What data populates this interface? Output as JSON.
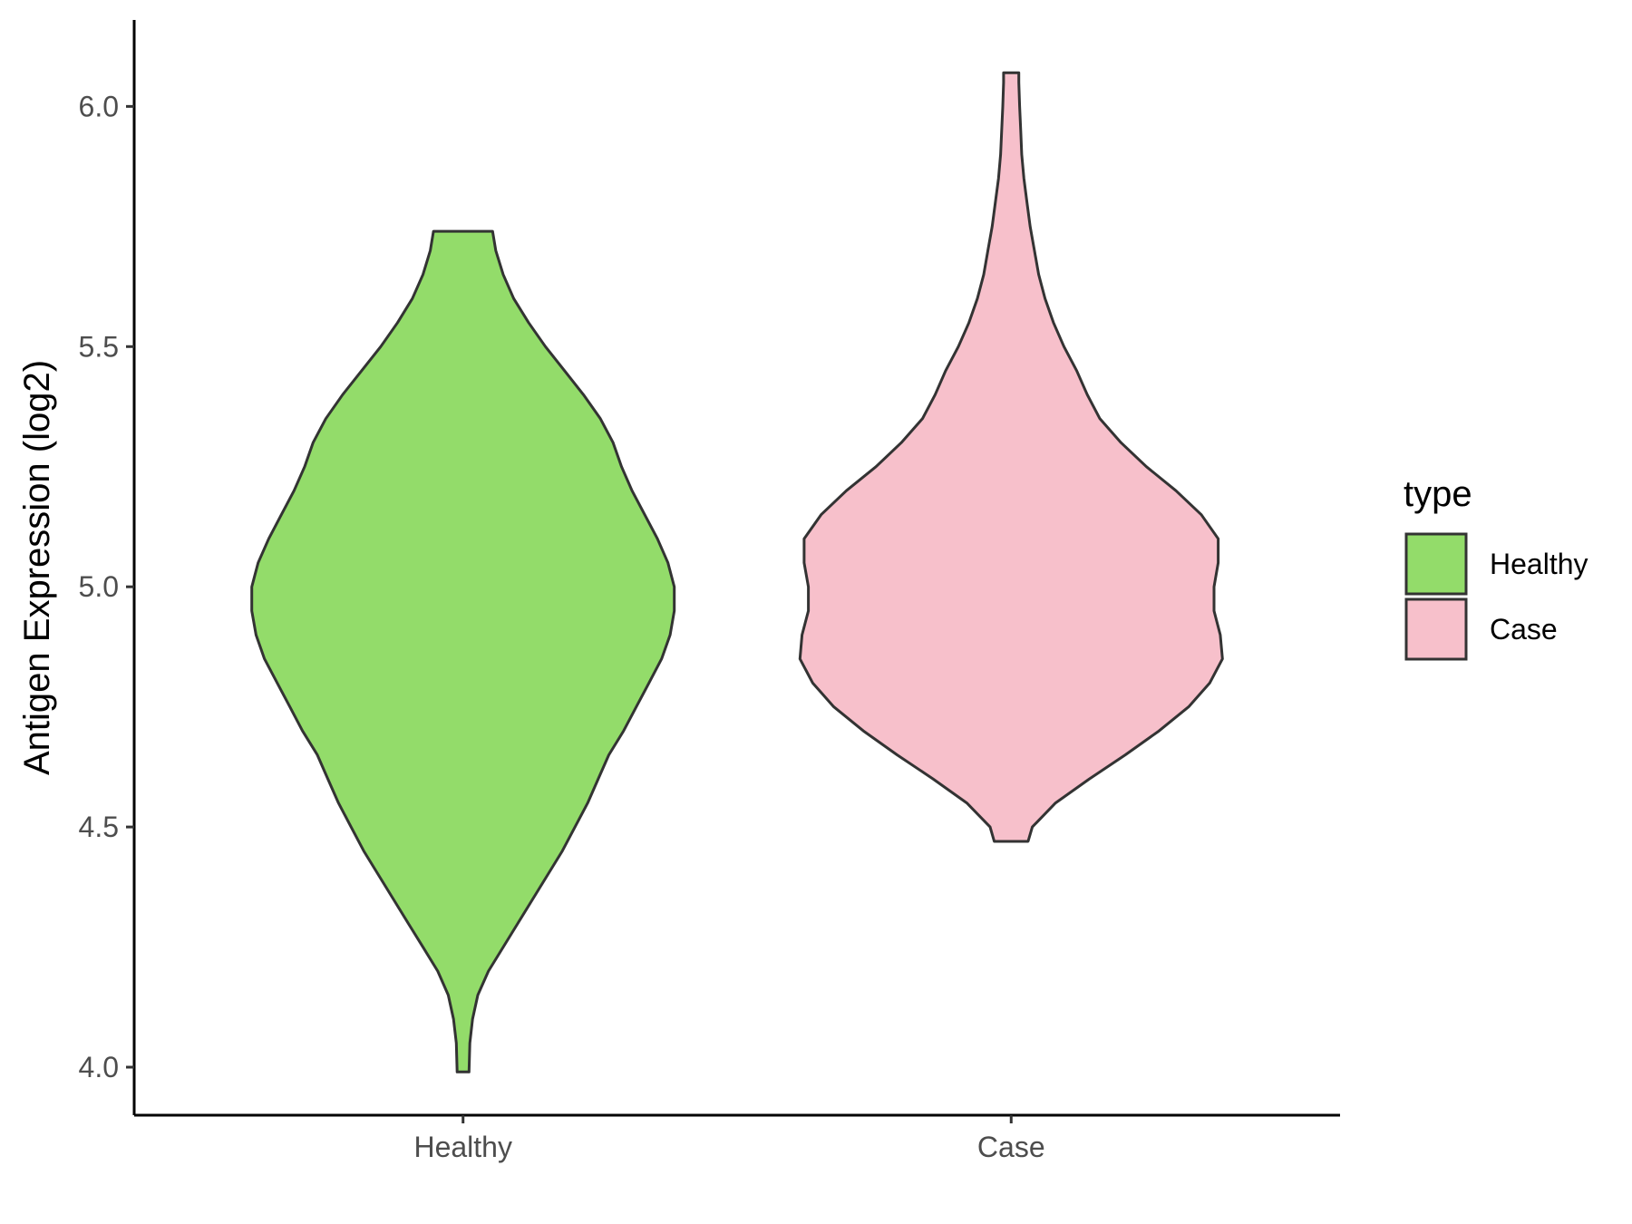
{
  "chart_data": {
    "type": "violin",
    "title": "",
    "xlabel": "",
    "ylabel": "Antigen Expression (log2)",
    "ylim": [
      3.9,
      6.18
    ],
    "yticks": [
      "4.0",
      "4.5",
      "5.0",
      "5.5",
      "6.0"
    ],
    "categories": [
      "Healthy",
      "Case"
    ],
    "grid": false,
    "legend": {
      "title": "type",
      "placement": "right",
      "entries": [
        {
          "label": "Healthy",
          "color": "#93dc6a"
        },
        {
          "label": "Case",
          "color": "#f7c0cb"
        }
      ]
    },
    "series": [
      {
        "name": "Healthy",
        "color": "#93dc6a",
        "min": 3.99,
        "max": 5.74,
        "density": [
          [
            3.99,
            0.028
          ],
          [
            4.05,
            0.032
          ],
          [
            4.1,
            0.045
          ],
          [
            4.15,
            0.07
          ],
          [
            4.2,
            0.12
          ],
          [
            4.25,
            0.19
          ],
          [
            4.3,
            0.26
          ],
          [
            4.35,
            0.33
          ],
          [
            4.4,
            0.4
          ],
          [
            4.45,
            0.47
          ],
          [
            4.5,
            0.53
          ],
          [
            4.55,
            0.59
          ],
          [
            4.6,
            0.64
          ],
          [
            4.65,
            0.69
          ],
          [
            4.7,
            0.76
          ],
          [
            4.75,
            0.82
          ],
          [
            4.8,
            0.88
          ],
          [
            4.85,
            0.94
          ],
          [
            4.9,
            0.98
          ],
          [
            4.95,
            1.0
          ],
          [
            5.0,
            1.0
          ],
          [
            5.05,
            0.97
          ],
          [
            5.1,
            0.92
          ],
          [
            5.15,
            0.86
          ],
          [
            5.2,
            0.8
          ],
          [
            5.25,
            0.75
          ],
          [
            5.3,
            0.71
          ],
          [
            5.35,
            0.65
          ],
          [
            5.4,
            0.57
          ],
          [
            5.45,
            0.48
          ],
          [
            5.5,
            0.39
          ],
          [
            5.55,
            0.31
          ],
          [
            5.6,
            0.24
          ],
          [
            5.65,
            0.19
          ],
          [
            5.7,
            0.155
          ],
          [
            5.74,
            0.14
          ]
        ]
      },
      {
        "name": "Case",
        "color": "#f7c0cb",
        "min": 4.47,
        "max": 6.07,
        "density": [
          [
            4.47,
            0.08
          ],
          [
            4.5,
            0.1
          ],
          [
            4.55,
            0.21
          ],
          [
            4.6,
            0.37
          ],
          [
            4.65,
            0.54
          ],
          [
            4.7,
            0.7
          ],
          [
            4.75,
            0.84
          ],
          [
            4.8,
            0.94
          ],
          [
            4.85,
            1.0
          ],
          [
            4.9,
            0.99
          ],
          [
            4.95,
            0.96
          ],
          [
            5.0,
            0.96
          ],
          [
            5.05,
            0.98
          ],
          [
            5.1,
            0.98
          ],
          [
            5.15,
            0.9
          ],
          [
            5.2,
            0.78
          ],
          [
            5.25,
            0.64
          ],
          [
            5.3,
            0.52
          ],
          [
            5.35,
            0.42
          ],
          [
            5.4,
            0.36
          ],
          [
            5.45,
            0.31
          ],
          [
            5.5,
            0.25
          ],
          [
            5.55,
            0.2
          ],
          [
            5.6,
            0.16
          ],
          [
            5.65,
            0.13
          ],
          [
            5.7,
            0.11
          ],
          [
            5.75,
            0.09
          ],
          [
            5.8,
            0.075
          ],
          [
            5.85,
            0.06
          ],
          [
            5.9,
            0.05
          ],
          [
            5.95,
            0.045
          ],
          [
            6.0,
            0.04
          ],
          [
            6.05,
            0.036
          ],
          [
            6.07,
            0.036
          ]
        ]
      }
    ]
  }
}
